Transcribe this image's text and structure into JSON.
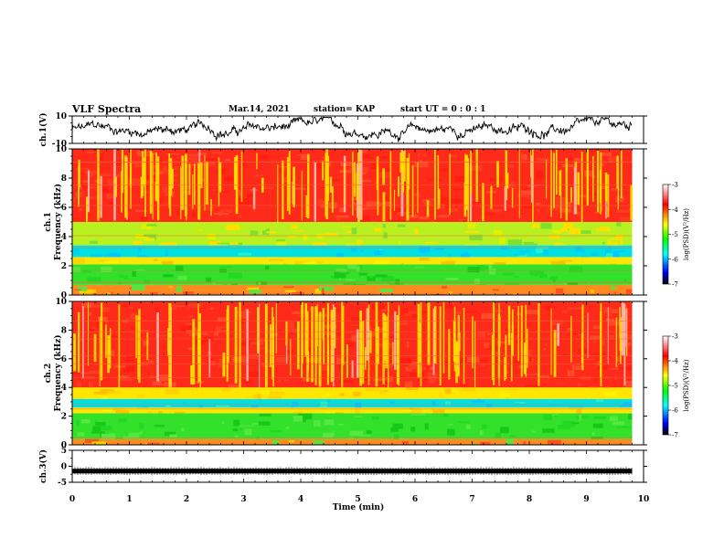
{
  "header": {
    "title": "VLF Spectra",
    "date": "Mar.14, 2021",
    "station": "station= KAP",
    "start_ut": "start UT =  0 : 0  : 1"
  },
  "chart_data": {
    "type": "heatmap",
    "x_axis": {
      "label": "Time (min)",
      "range": [
        0,
        10
      ],
      "ticks": [
        0,
        1,
        2,
        3,
        4,
        5,
        6,
        7,
        8,
        9,
        10
      ],
      "data_end": 9.8
    },
    "panels": [
      {
        "id": "ch1-waveform",
        "kind": "line",
        "ylabel": "ch.1(V)",
        "ylim": [
          -10,
          10
        ],
        "yticks": [
          10,
          -10
        ],
        "trace_color": "#000000"
      },
      {
        "id": "ch1-spectrogram",
        "kind": "heatmap",
        "ylabel_top": "ch.1",
        "ylabel": "Frequency (kHz)",
        "ylim": [
          0,
          10
        ],
        "yticks": [
          0,
          2,
          4,
          6,
          8,
          10
        ],
        "bands": [
          {
            "from": 0.0,
            "to": 0.7,
            "level": "mixed"
          },
          {
            "from": 0.7,
            "to": 2.1,
            "level": "green"
          },
          {
            "from": 2.1,
            "to": 2.6,
            "level": "yellow"
          },
          {
            "from": 2.6,
            "to": 3.4,
            "level": "cyan"
          },
          {
            "from": 3.4,
            "to": 5.0,
            "level": "yellow-green"
          },
          {
            "from": 5.0,
            "to": 10.0,
            "level": "red"
          }
        ]
      },
      {
        "id": "ch2-spectrogram",
        "kind": "heatmap",
        "ylabel_top": "ch.2",
        "ylabel": "Frequency (kHz)",
        "ylim": [
          0,
          10
        ],
        "yticks": [
          0,
          2,
          4,
          6,
          8,
          10
        ],
        "bands": [
          {
            "from": 0.0,
            "to": 0.4,
            "level": "mixed"
          },
          {
            "from": 0.4,
            "to": 2.2,
            "level": "green"
          },
          {
            "from": 2.2,
            "to": 2.6,
            "level": "yellow"
          },
          {
            "from": 2.6,
            "to": 3.2,
            "level": "cyan"
          },
          {
            "from": 3.2,
            "to": 4.0,
            "level": "yellow"
          },
          {
            "from": 4.0,
            "to": 10.0,
            "level": "red"
          }
        ]
      },
      {
        "id": "ch3-waveform",
        "kind": "line",
        "ylabel": "ch.3(V)",
        "ylim": [
          -5,
          5
        ],
        "yticks": [
          5,
          0,
          -5
        ],
        "trace_level": -1.5
      }
    ],
    "colorbar": {
      "label": "log(PSD)(V²/Hz)",
      "range": [
        -7,
        -3
      ],
      "ticks": [
        -3,
        -4,
        -5,
        -6,
        -7
      ],
      "colors": [
        "#000000",
        "#0000ff",
        "#00ffff",
        "#00ff00",
        "#ffff00",
        "#ff0000",
        "#ffffff"
      ]
    }
  }
}
